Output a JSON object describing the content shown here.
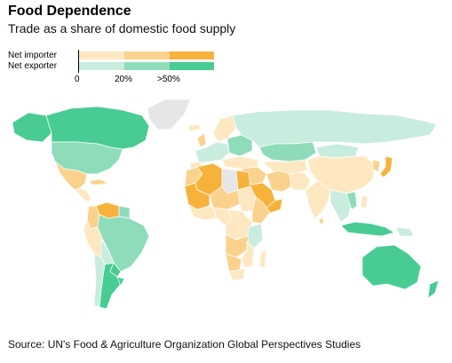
{
  "title": "Food Dependence",
  "subtitle": "Trade as a share of domestic food supply",
  "legend": {
    "rows": [
      {
        "label": "Net importer",
        "colors": [
          "#fde8c2",
          "#fbd28d",
          "#f7b23c"
        ]
      },
      {
        "label": "Net exporter",
        "colors": [
          "#c8ecdd",
          "#8fdcbb",
          "#48cc93"
        ]
      }
    ],
    "ticks": [
      "0",
      "20%",
      ">50%"
    ]
  },
  "colors": {
    "imp_low": "#fde8c2",
    "imp_mid": "#fbd28d",
    "imp_high": "#f7b23c",
    "exp_low": "#c8ecdd",
    "exp_mid": "#8fdcbb",
    "exp_high": "#48cc93",
    "no_data": "#e6e6e6"
  },
  "source": "Source: UN's Food & Agriculture Organization Global Perspectives Studies"
}
